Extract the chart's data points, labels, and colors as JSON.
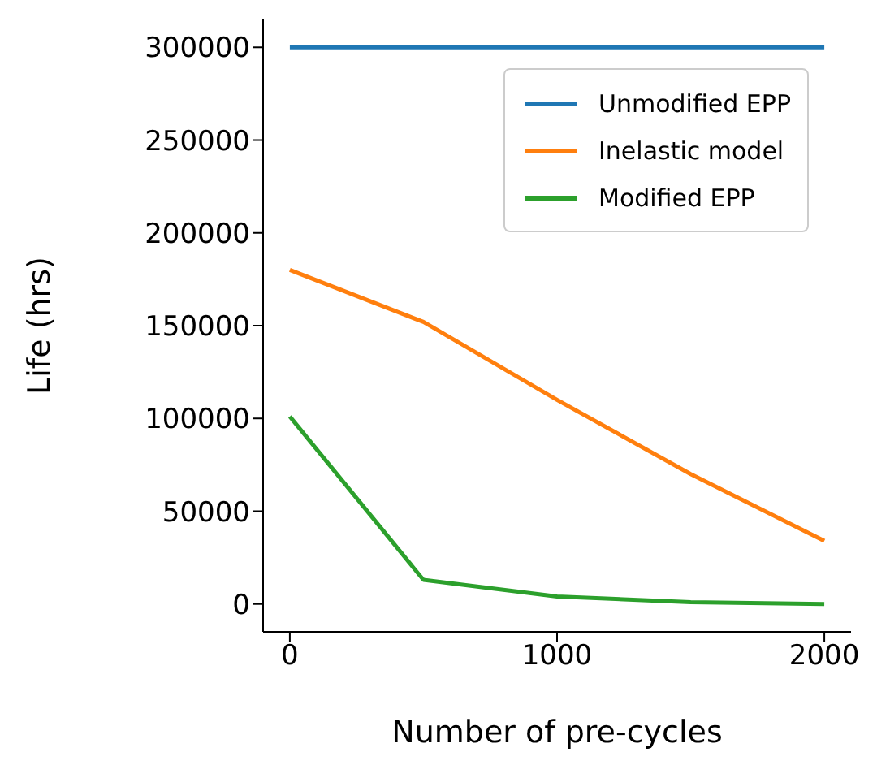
{
  "chart_data": {
    "type": "line",
    "xlabel": "Number of pre-cycles",
    "ylabel": "Life (hrs)",
    "x": [
      0,
      500,
      1000,
      1500,
      2000
    ],
    "series": [
      {
        "name": "Unmodified EPP",
        "color": "#1f77b4",
        "values": [
          300000,
          300000,
          300000,
          300000,
          300000
        ]
      },
      {
        "name": "Inelastic model",
        "color": "#ff7f0e",
        "values": [
          180000,
          152000,
          110000,
          70000,
          34000
        ]
      },
      {
        "name": "Modified EPP",
        "color": "#2ca02c",
        "values": [
          101000,
          13000,
          4000,
          1000,
          0
        ]
      }
    ],
    "xlim": [
      -100,
      2100
    ],
    "xticks": [
      0,
      1000,
      2000
    ],
    "ylim": [
      -15000,
      315000
    ],
    "yticks": [
      0,
      50000,
      100000,
      150000,
      200000,
      250000,
      300000
    ],
    "legend": "top right",
    "grid": false,
    "marker": "none",
    "line_style": "solid"
  }
}
